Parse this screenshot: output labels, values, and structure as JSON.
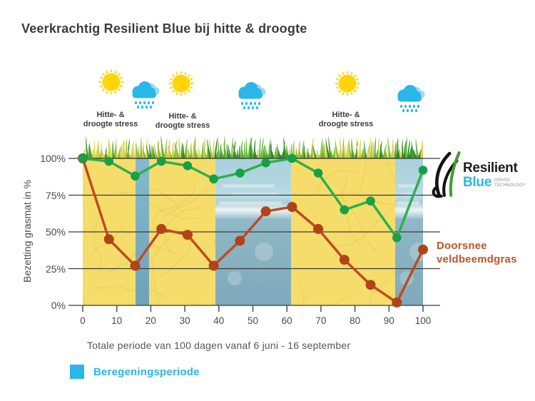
{
  "title": "Veerkrachtig Resilient Blue bij hitte & droogte",
  "weather_row": {
    "icons": [
      "sun",
      "rain-cloud",
      "sun",
      "rain-cloud",
      "sun",
      "rain-cloud"
    ],
    "stress_labels": [
      "Hitte- &\ndroogte stress",
      "Hitte- &\ndroogte stress",
      "Hitte- &\ndroogte stress"
    ]
  },
  "chart_data": {
    "type": "line",
    "title": "Veerkrachtig Resilient Blue bij hitte & droogte",
    "ylabel": "Bezetting grasmat in %",
    "caption": "Totale periode van 100 dagen vanaf 6 juni - 16 september",
    "xlim": [
      0,
      100
    ],
    "ylim": [
      0,
      100
    ],
    "grid": true,
    "x_days": [
      0,
      7.7,
      15.4,
      23.1,
      30.8,
      38.5,
      46.2,
      53.8,
      61.5,
      69.2,
      76.9,
      84.6,
      92.3,
      100
    ],
    "series": [
      {
        "name": "Doorsnee veldbeemdgras",
        "color": "#bf4b22",
        "marker_color": "#b24218",
        "values": [
          100,
          45,
          27,
          52,
          48,
          27,
          44,
          64,
          67,
          52,
          31,
          14,
          2,
          38
        ]
      },
      {
        "name": "Resilient Blue",
        "color": "#2eb04c",
        "marker_color": "#17a046",
        "values": [
          100,
          98,
          88,
          98,
          95,
          86,
          90,
          97,
          100,
          90,
          65,
          71,
          46,
          92
        ]
      }
    ],
    "xticks": [
      0,
      10,
      20,
      30,
      40,
      50,
      60,
      70,
      80,
      90,
      100
    ],
    "yticks": [
      {
        "value": 100,
        "label": "100%"
      },
      {
        "value": 75,
        "label": "75%"
      },
      {
        "value": 50,
        "label": "50%"
      },
      {
        "value": 25,
        "label": "25%"
      },
      {
        "value": 0,
        "label": "0%"
      }
    ],
    "irrigation_periods_days": [
      [
        15.5,
        19.5
      ],
      [
        39,
        61.3
      ],
      [
        91.8,
        100
      ]
    ],
    "legend": {
      "swatch_color": "#29b6e9",
      "label": "Beregeningsperiode"
    }
  },
  "brand": {
    "line1": "Resilient",
    "line2": "Blue",
    "tagline": "GRASS\nTECHNOLOGY"
  },
  "red_series_label": "Doorsnee\nveldbeemdgras",
  "colors": {
    "accent_cyan": "#29b6e9",
    "green_line": "#2eb04c",
    "red_line": "#bf4b22",
    "dry_soil_yellow": "#f6dd6b",
    "water_blue": "#7fb3c8",
    "sun_yellow": "#ffd408",
    "text_dark": "#3c3c3c"
  }
}
